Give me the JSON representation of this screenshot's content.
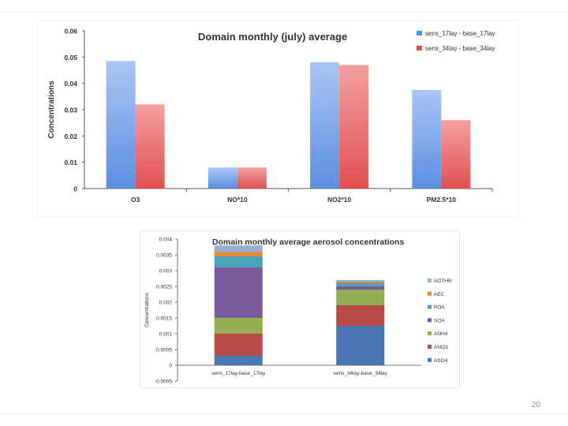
{
  "page_number": "20",
  "chart_data": [
    {
      "type": "bar",
      "title": "Domain monthly (july) average",
      "xlabel": "",
      "ylabel": "Concentrations",
      "ylim": [
        0,
        0.06
      ],
      "yticks": [
        "0",
        "0.01",
        "0.02",
        "0.03",
        "0.04",
        "0.05",
        "0.06"
      ],
      "ytick_values": [
        0,
        0.01,
        0.02,
        0.03,
        0.04,
        0.05,
        0.06
      ],
      "categories": [
        "O3",
        "NO*10",
        "NO2*10",
        "PM2.5*10"
      ],
      "series": [
        {
          "name": "sens_17lay - base_17lay",
          "color": "#5b8fe0",
          "values": [
            0.0485,
            0.008,
            0.048,
            0.0375
          ]
        },
        {
          "name": "sens_34lay - base_34lay",
          "color": "#e05050",
          "values": [
            0.032,
            0.008,
            0.047,
            0.026
          ]
        }
      ],
      "legend": "top-right",
      "grid": false
    },
    {
      "type": "bar",
      "stacked": true,
      "title": "Domain monthly average aerosol concentrations",
      "xlabel": "",
      "ylabel": "Concentrations",
      "ylim": [
        -0.0005,
        0.004
      ],
      "yticks": [
        "-0.0005",
        "0",
        "0.0005",
        "0.001",
        "0.0015",
        "0.002",
        "0.0025",
        "0.003",
        "0.0035",
        "0.004"
      ],
      "ytick_values": [
        -0.0005,
        0,
        0.0005,
        0.001,
        0.0015,
        0.002,
        0.0025,
        0.003,
        0.0035,
        0.004
      ],
      "categories": [
        "sens_17lay-base_17lay",
        "sens_34lay-base_34lay"
      ],
      "series": [
        {
          "name": "ASO4",
          "color": "#4a78b3",
          "values": [
            0.0003,
            0.00125
          ]
        },
        {
          "name": "ANO3",
          "color": "#b84a48",
          "values": [
            0.0007,
            0.00065
          ]
        },
        {
          "name": "ANH4",
          "color": "#93ad55",
          "values": [
            0.0005,
            0.0005
          ]
        },
        {
          "name": "SOA",
          "color": "#7a5a9a",
          "values": [
            0.0016,
            0.0001
          ]
        },
        {
          "name": "POA",
          "color": "#4aa3b8",
          "values": [
            0.00035,
            0.0001
          ]
        },
        {
          "name": "AEC",
          "color": "#e08a3a",
          "values": [
            0.00015,
            5e-05
          ]
        },
        {
          "name": "AOTHR",
          "color": "#95b3d7",
          "values": [
            0.0002,
            5e-05
          ]
        }
      ],
      "legend": "right",
      "grid": false
    }
  ]
}
